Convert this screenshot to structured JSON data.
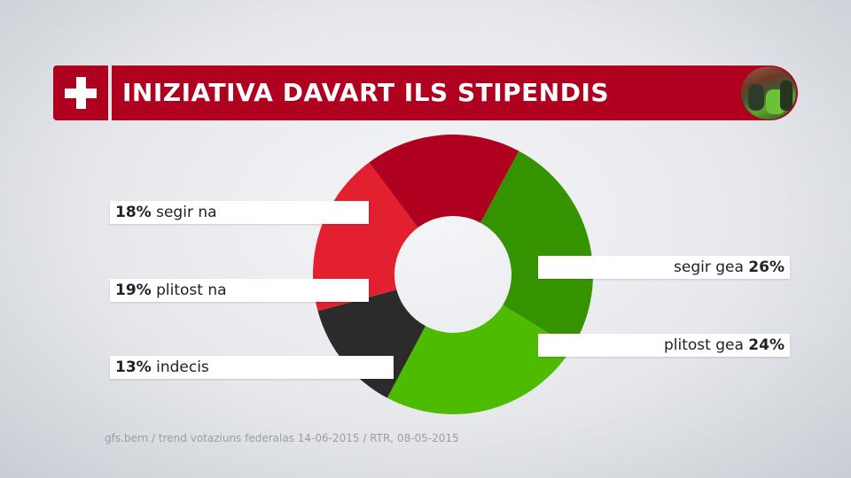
{
  "header": {
    "title": "INIZIATIVA DAVART ILS STIPENDIS",
    "accent_color": "#b0001f"
  },
  "chart_data": {
    "type": "pie",
    "donut": true,
    "slices": [
      {
        "label": "segir gea",
        "value": 26,
        "color": "#359300"
      },
      {
        "label": "plitost gea",
        "value": 24,
        "color": "#4dbb00"
      },
      {
        "label": "indecis",
        "value": 13,
        "color": "#2b2b2b"
      },
      {
        "label": "plitost na",
        "value": 19,
        "color": "#e2202f"
      },
      {
        "label": "segir na",
        "value": 18,
        "color": "#b0001f"
      }
    ]
  },
  "labels": {
    "segir_na": {
      "pct": "18%",
      "text": "segir na"
    },
    "plitost_na": {
      "pct": "19%",
      "text": "plitost na"
    },
    "indecis": {
      "pct": "13%",
      "text": "indecis"
    },
    "segir_gea": {
      "pct": "26%",
      "text": "segir gea"
    },
    "plitost_gea": {
      "pct": "24%",
      "text": "plitost gea"
    }
  },
  "source": "gfs.bern / trend votaziuns federalas 14-06-2015 / RTR, 08-05-2015"
}
